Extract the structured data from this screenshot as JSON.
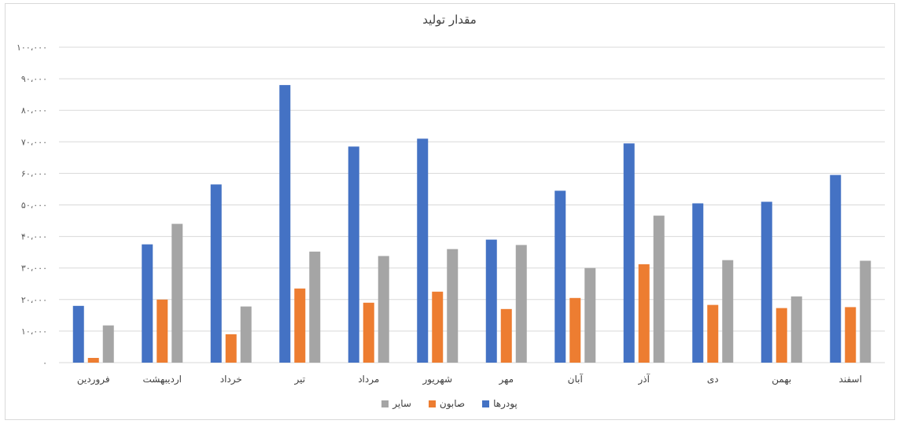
{
  "chart_data": {
    "type": "bar",
    "title": "مقدار تولید",
    "categories": [
      "فروردین",
      "اردیبهشت",
      "خرداد",
      "تیر",
      "مرداد",
      "شهریور",
      "مهر",
      "آبان",
      "آذر",
      "دی",
      "بهمن",
      "اسفند"
    ],
    "series": [
      {
        "name": "پودرها",
        "color": "#4472C4",
        "values": [
          18000,
          37500,
          56500,
          88000,
          68500,
          71000,
          39000,
          54500,
          69500,
          50500,
          51000,
          59500
        ]
      },
      {
        "name": "صابون",
        "color": "#ED7D31",
        "values": [
          1500,
          20000,
          9000,
          23500,
          19000,
          22500,
          17000,
          20500,
          31200,
          18300,
          17300,
          17600
        ]
      },
      {
        "name": "سایر",
        "color": "#A5A5A5",
        "values": [
          11800,
          44000,
          17800,
          35200,
          33800,
          36000,
          37300,
          30000,
          46600,
          32500,
          21000,
          32300
        ]
      }
    ],
    "ylim": [
      0,
      100000
    ],
    "yticks": [
      0,
      10000,
      20000,
      30000,
      40000,
      50000,
      60000,
      70000,
      80000,
      90000,
      100000
    ],
    "ytick_labels": [
      "۰",
      "۱۰،۰۰۰",
      "۲۰،۰۰۰",
      "۳۰،۰۰۰",
      "۴۰،۰۰۰",
      "۵۰،۰۰۰",
      "۶۰،۰۰۰",
      "۷۰،۰۰۰",
      "۸۰،۰۰۰",
      "۹۰،۰۰۰",
      "۱۰۰،۰۰۰"
    ],
    "grid": true,
    "legend": "bottom"
  }
}
